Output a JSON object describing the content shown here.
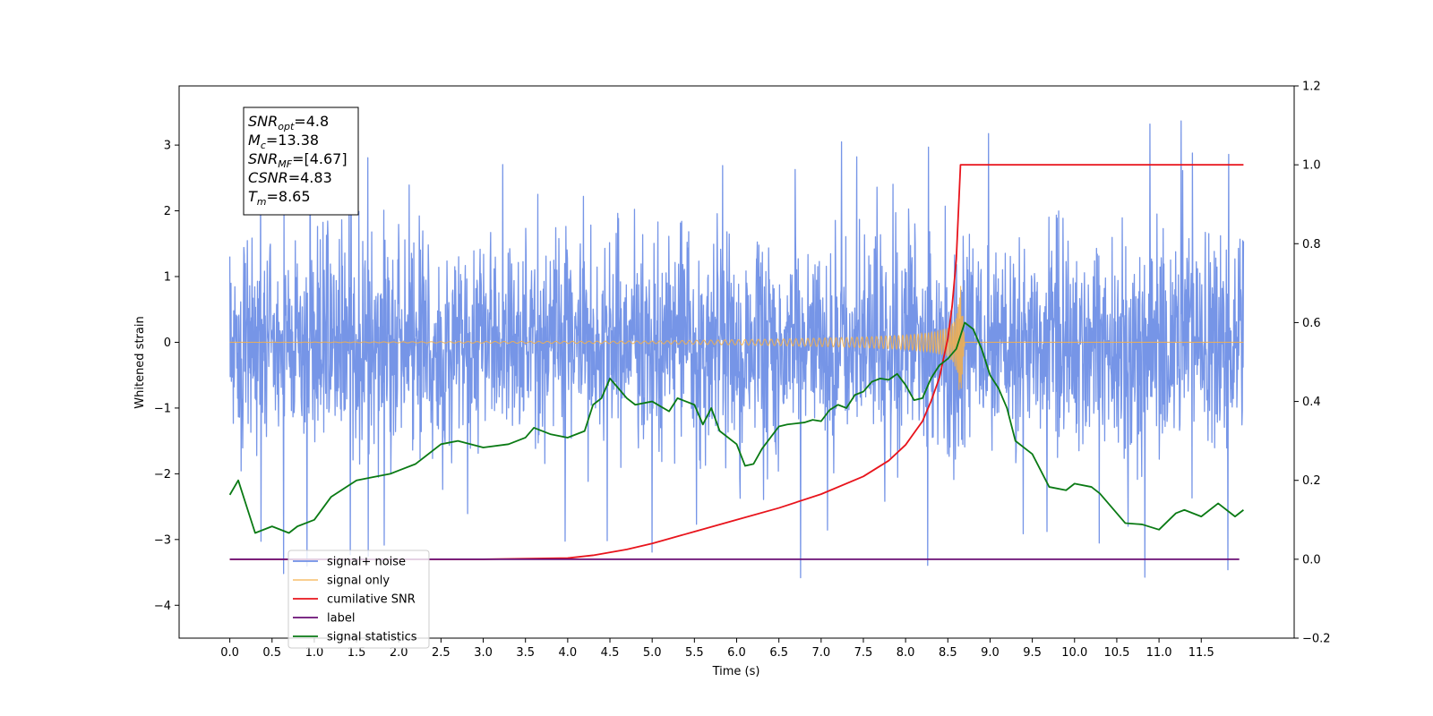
{
  "chart_data": {
    "type": "line",
    "xlabel": "Time (s)",
    "ylabel": "Whitened strain",
    "xlim": [
      -0.6,
      12.6
    ],
    "ylim": [
      -4.5,
      3.9
    ],
    "y2lim": [
      -0.2,
      1.2
    ],
    "x_ticks": [
      "0.0",
      "0.5",
      "1.0",
      "1.5",
      "2.0",
      "2.5",
      "3.0",
      "3.5",
      "4.0",
      "4.5",
      "5.0",
      "5.5",
      "6.0",
      "6.5",
      "7.0",
      "7.5",
      "8.0",
      "8.5",
      "9.0",
      "9.5",
      "10.0",
      "10.5",
      "11.0",
      "11.5"
    ],
    "y_ticks": [
      "3",
      "2",
      "1",
      "0",
      "−1",
      "−2",
      "−3",
      "−4"
    ],
    "y2_ticks": [
      "1.2",
      "1.0",
      "0.8",
      "0.6",
      "0.4",
      "0.2",
      "0.0",
      "−0.2"
    ],
    "grid": false,
    "legend_position": "bottom-left",
    "annotation": {
      "lines": [
        {
          "sym": "SNR",
          "sub": "opt",
          "value": "=4.8"
        },
        {
          "sym": "M",
          "sub": "c",
          "value": "=13.38"
        },
        {
          "sym": "SNR",
          "sub": "MF",
          "value": "=[4.67]"
        },
        {
          "sym": "CSNR",
          "sub": "",
          "value": "=4.83"
        },
        {
          "sym": "T",
          "sub": "m",
          "value": "=8.65"
        }
      ]
    },
    "series": [
      {
        "name": "signal+ noise",
        "axis": "left",
        "color": "#6f8fe6",
        "kind": "noise",
        "x_range": [
          0.0,
          12.0
        ],
        "sigma": 0.8,
        "y_range": [
          -4.1,
          3.5
        ]
      },
      {
        "name": "signal only",
        "axis": "left",
        "color": "#f5b04a",
        "kind": "chirp",
        "x_range": [
          0.0,
          12.0
        ],
        "merger_time": 8.65,
        "peak_amplitude": 0.9,
        "envelope": [
          [
            0,
            0
          ],
          [
            5.0,
            0.02
          ],
          [
            6.5,
            0.05
          ],
          [
            7.5,
            0.08
          ],
          [
            8.0,
            0.11
          ],
          [
            8.3,
            0.15
          ],
          [
            8.5,
            0.22
          ],
          [
            8.6,
            0.4
          ],
          [
            8.65,
            0.9
          ],
          [
            8.7,
            0
          ]
        ]
      },
      {
        "name": "cumilative SNR",
        "axis": "right",
        "color": "#e8141c",
        "x": [
          0.0,
          3.0,
          4.0,
          4.3,
          4.7,
          5.0,
          5.5,
          6.0,
          6.5,
          7.0,
          7.5,
          7.8,
          8.0,
          8.2,
          8.3,
          8.4,
          8.5,
          8.55,
          8.6,
          8.65,
          12.0
        ],
        "y": [
          0.0,
          0.0,
          0.003,
          0.01,
          0.025,
          0.04,
          0.07,
          0.1,
          0.13,
          0.165,
          0.21,
          0.25,
          0.29,
          0.35,
          0.4,
          0.46,
          0.56,
          0.64,
          0.76,
          1.0,
          1.0
        ]
      },
      {
        "name": "label",
        "axis": "right",
        "color": "#6a0e74",
        "x": [
          0.0,
          11.95
        ],
        "y": [
          0.0,
          0.0
        ]
      },
      {
        "name": "signal statistics",
        "axis": "left",
        "color": "#0a7a14",
        "x": [
          0.0,
          0.1,
          0.2,
          0.3,
          0.5,
          0.7,
          0.8,
          1.0,
          1.2,
          1.5,
          1.7,
          1.9,
          2.0,
          2.2,
          2.5,
          2.7,
          3.0,
          3.3,
          3.5,
          3.6,
          3.8,
          4.0,
          4.2,
          4.3,
          4.4,
          4.5,
          4.6,
          4.7,
          4.8,
          5.0,
          5.2,
          5.3,
          5.5,
          5.6,
          5.7,
          5.8,
          6.0,
          6.1,
          6.2,
          6.3,
          6.4,
          6.5,
          6.6,
          6.8,
          6.9,
          7.0,
          7.1,
          7.2,
          7.3,
          7.4,
          7.5,
          7.6,
          7.7,
          7.8,
          7.9,
          8.0,
          8.1,
          8.2,
          8.3,
          8.4,
          8.5,
          8.6,
          8.7,
          8.8,
          8.9,
          9.0,
          9.1,
          9.2,
          9.3,
          9.5,
          9.7,
          9.9,
          10.0,
          10.2,
          10.3,
          10.5,
          10.6,
          10.8,
          11.0,
          11.2,
          11.3,
          11.5,
          11.7,
          11.9,
          12.0
        ],
        "y": [
          -2.32,
          -2.1,
          -2.5,
          -2.9,
          -2.8,
          -2.9,
          -2.8,
          -2.7,
          -2.35,
          -2.1,
          -2.05,
          -2.0,
          -1.95,
          -1.85,
          -1.55,
          -1.5,
          -1.6,
          -1.55,
          -1.45,
          -1.3,
          -1.4,
          -1.45,
          -1.35,
          -0.95,
          -0.85,
          -0.55,
          -0.7,
          -0.85,
          -0.95,
          -0.9,
          -1.05,
          -0.85,
          -0.95,
          -1.25,
          -1.0,
          -1.35,
          -1.55,
          -1.88,
          -1.85,
          -1.62,
          -1.45,
          -1.28,
          -1.25,
          -1.22,
          -1.18,
          -1.2,
          -1.03,
          -0.95,
          -1.0,
          -0.8,
          -0.75,
          -0.6,
          -0.55,
          -0.57,
          -0.48,
          -0.65,
          -0.88,
          -0.85,
          -0.55,
          -0.35,
          -0.25,
          -0.1,
          0.3,
          0.2,
          -0.1,
          -0.5,
          -0.7,
          -1.0,
          -1.5,
          -1.7,
          -2.2,
          -2.25,
          -2.15,
          -2.2,
          -2.3,
          -2.6,
          -2.75,
          -2.77,
          -2.85,
          -2.6,
          -2.55,
          -2.65,
          -2.45,
          -2.65,
          -2.55
        ]
      }
    ]
  }
}
